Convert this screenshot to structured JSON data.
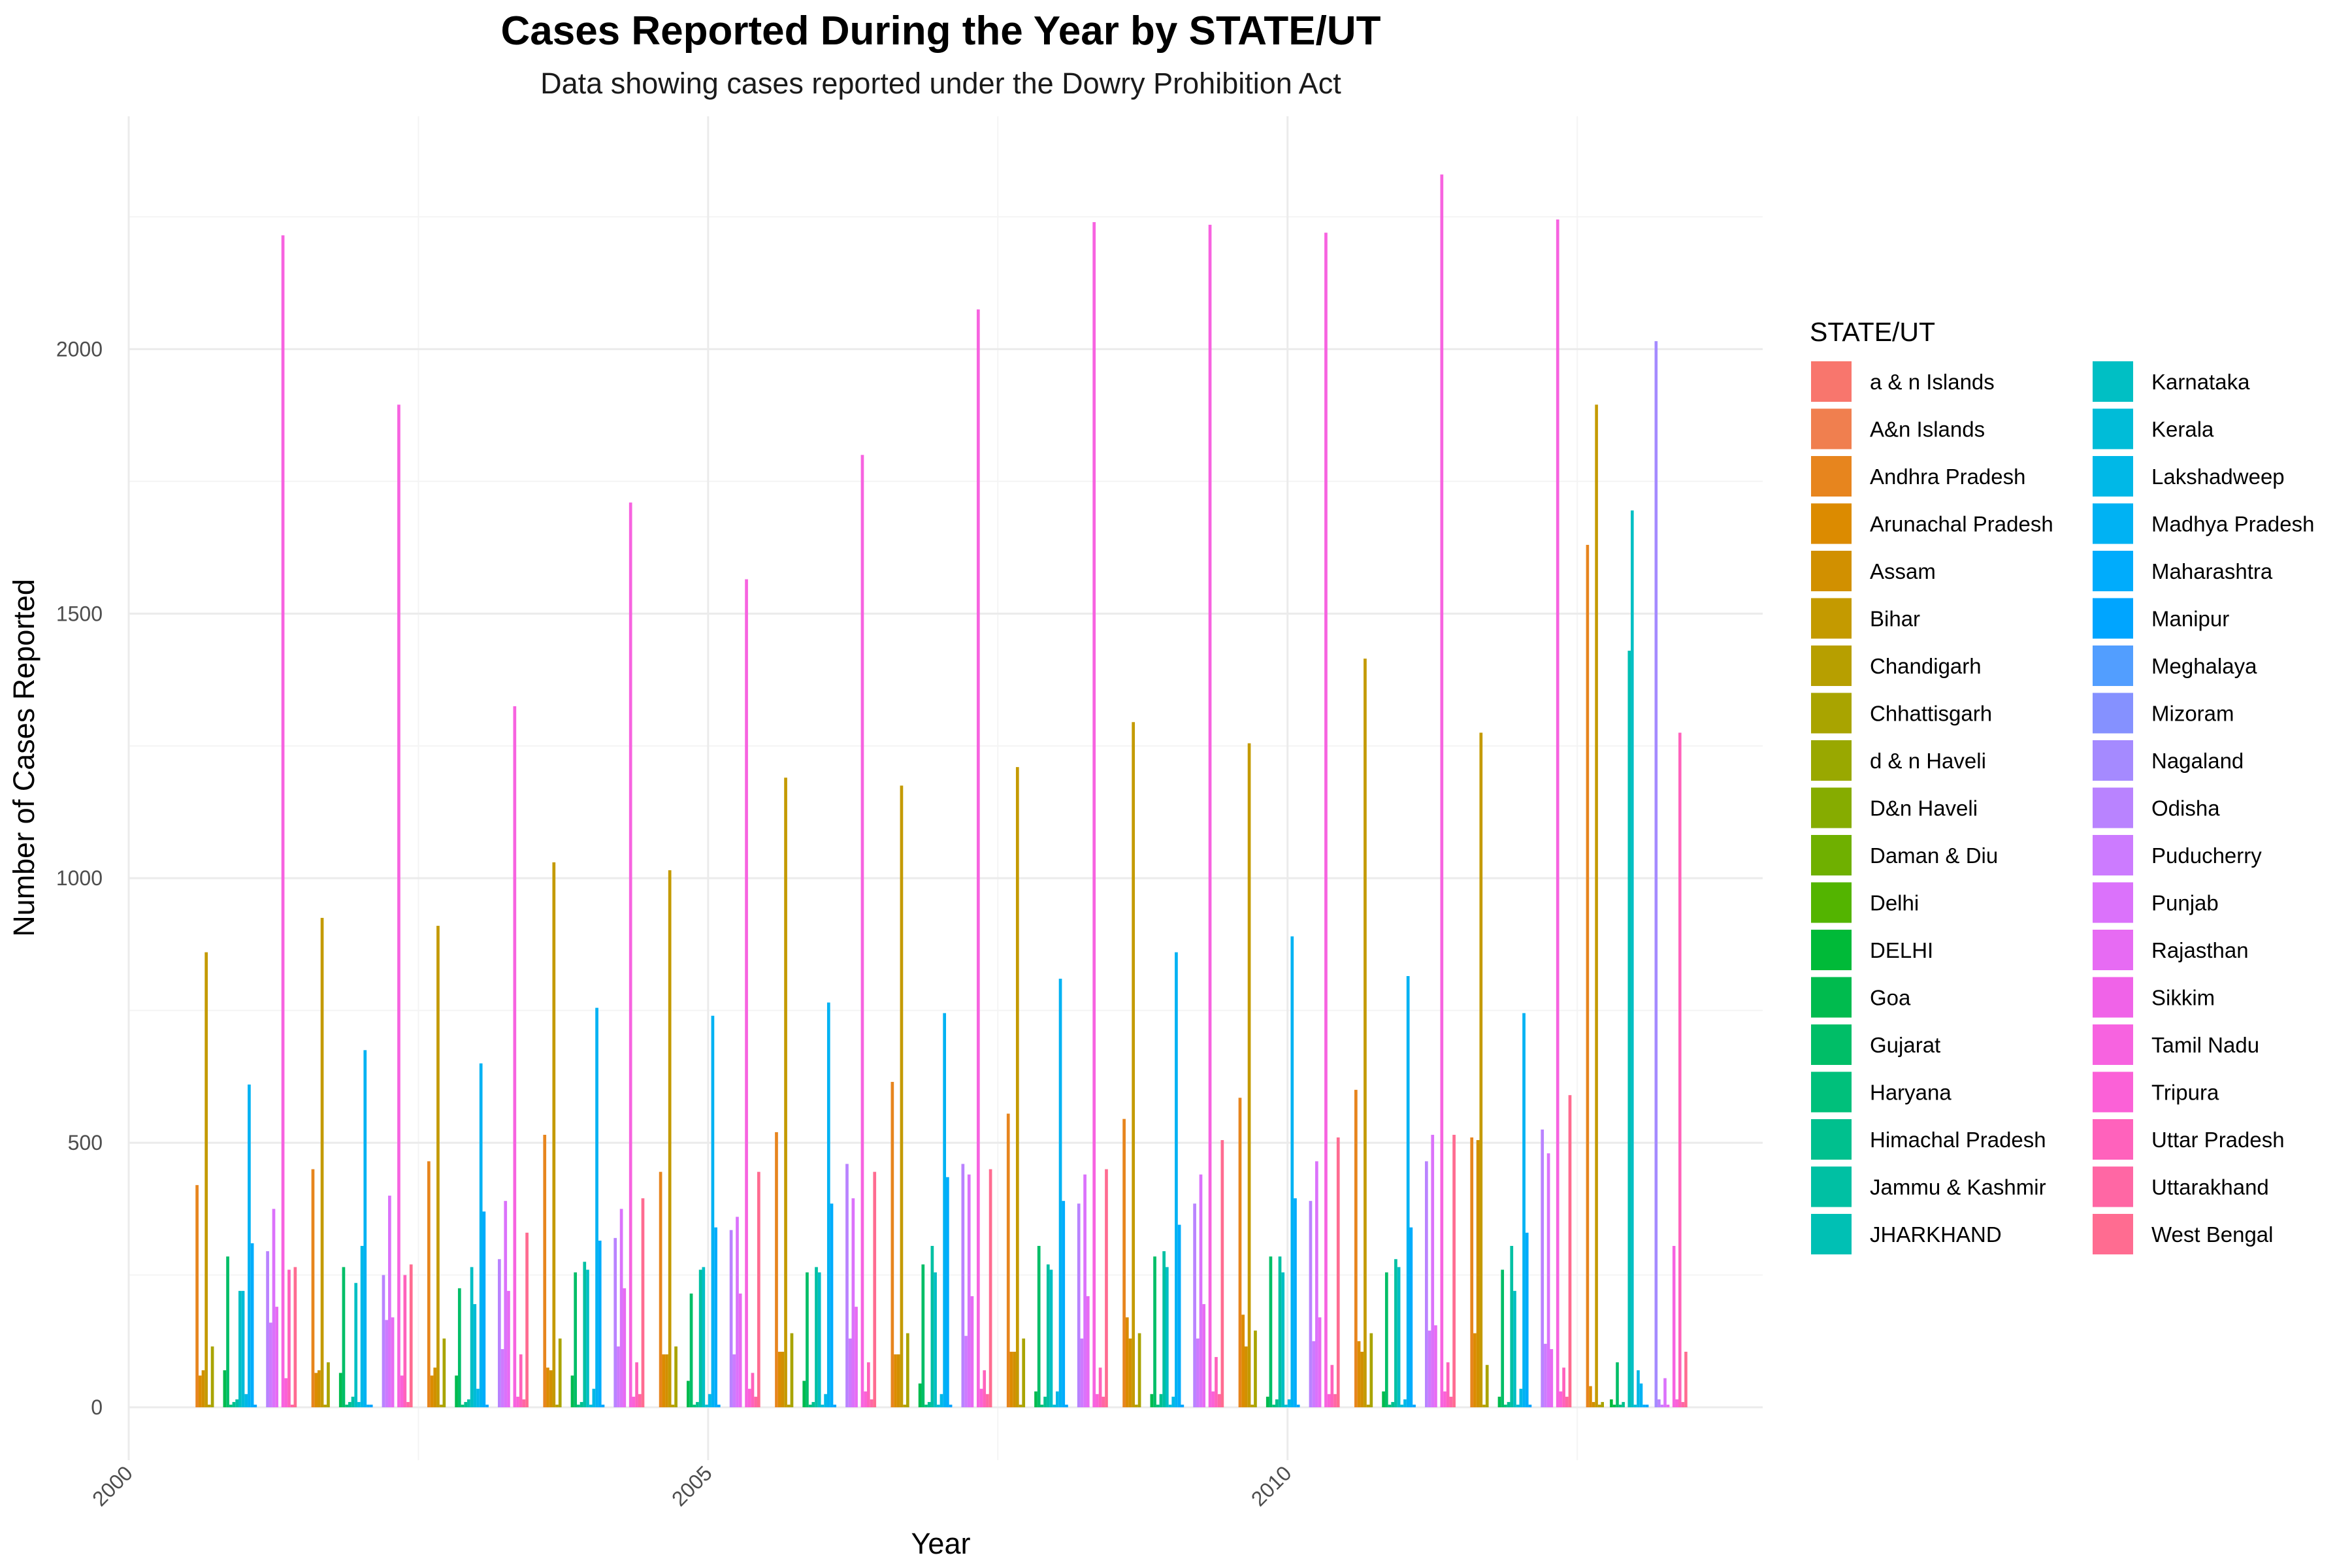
{
  "chart_data": {
    "type": "bar",
    "title": "Cases Reported During the Year by STATE/UT",
    "subtitle": "Data showing cases reported under the Dowry Prohibition Act",
    "xlabel": "Year",
    "ylabel": "Number of Cases Reported",
    "legend_title": "STATE/UT",
    "legend_position": "right",
    "grid": true,
    "x_ticks": [
      2000,
      2005,
      2010
    ],
    "y_ticks": [
      0,
      500,
      1000,
      1500,
      2000
    ],
    "xlim": [
      2000,
      2014.1
    ],
    "ylim": [
      -100,
      2440
    ],
    "x": [
      2001,
      2002,
      2003,
      2004,
      2005,
      2006,
      2007,
      2008,
      2009,
      2010,
      2011,
      2012,
      2013
    ],
    "series": [
      {
        "name": "a & n Islands",
        "color": "#F8766D",
        "values": [
          0,
          0,
          0,
          0,
          0,
          0,
          0,
          0,
          0,
          0,
          0,
          0,
          null
        ]
      },
      {
        "name": "A&n Islands",
        "color": "#F07F4F",
        "values": [
          null,
          null,
          null,
          null,
          null,
          null,
          null,
          null,
          null,
          null,
          null,
          null,
          0
        ]
      },
      {
        "name": "Andhra Pradesh",
        "color": "#E7851E",
        "values": [
          420,
          450,
          465,
          515,
          445,
          520,
          615,
          555,
          545,
          585,
          600,
          510,
          1630
        ]
      },
      {
        "name": "Arunachal Pradesh",
        "color": "#DC8B00",
        "values": [
          60,
          65,
          60,
          75,
          100,
          105,
          100,
          105,
          170,
          175,
          125,
          140,
          40
        ]
      },
      {
        "name": "Assam",
        "color": "#D19000",
        "values": [
          70,
          70,
          75,
          70,
          100,
          105,
          100,
          105,
          130,
          115,
          105,
          505,
          10
        ]
      },
      {
        "name": "Bihar",
        "color": "#C49A00",
        "values": [
          860,
          925,
          910,
          1030,
          1015,
          1190,
          1175,
          1210,
          1295,
          1255,
          1415,
          1275,
          1895
        ]
      },
      {
        "name": "Chandigarh",
        "color": "#B79F00",
        "values": [
          5,
          5,
          5,
          5,
          5,
          5,
          5,
          5,
          5,
          5,
          5,
          5,
          5
        ]
      },
      {
        "name": "Chhattisgarh",
        "color": "#A9A400",
        "values": [
          115,
          85,
          130,
          130,
          115,
          140,
          140,
          130,
          140,
          145,
          140,
          80,
          10
        ]
      },
      {
        "name": "d & n Haveli",
        "color": "#99A800",
        "values": [
          0,
          0,
          0,
          0,
          0,
          0,
          0,
          0,
          0,
          0,
          0,
          0,
          null
        ]
      },
      {
        "name": "D&n Haveli",
        "color": "#86AC00",
        "values": [
          null,
          null,
          null,
          null,
          null,
          null,
          null,
          null,
          null,
          null,
          null,
          null,
          0
        ]
      },
      {
        "name": "Daman & Diu",
        "color": "#6FB000",
        "values": [
          0,
          0,
          0,
          0,
          0,
          0,
          0,
          0,
          0,
          0,
          0,
          0,
          0
        ]
      },
      {
        "name": "Delhi",
        "color": "#53B400",
        "values": [
          0,
          0,
          0,
          0,
          0,
          0,
          0,
          0,
          0,
          0,
          0,
          0,
          null
        ]
      },
      {
        "name": "DELHI",
        "color": "#00BA38",
        "values": [
          null,
          null,
          null,
          null,
          null,
          null,
          null,
          null,
          null,
          null,
          null,
          null,
          15
        ]
      },
      {
        "name": "Goa",
        "color": "#00BB4E",
        "values": [
          70,
          65,
          60,
          60,
          50,
          50,
          45,
          30,
          25,
          20,
          30,
          20,
          5
        ]
      },
      {
        "name": "Gujarat",
        "color": "#00BE67",
        "values": [
          285,
          265,
          225,
          255,
          215,
          255,
          270,
          305,
          285,
          285,
          255,
          260,
          85
        ]
      },
      {
        "name": "Haryana",
        "color": "#00C07B",
        "values": [
          5,
          5,
          5,
          5,
          5,
          5,
          5,
          5,
          5,
          5,
          5,
          5,
          5
        ]
      },
      {
        "name": "Himachal Pradesh",
        "color": "#00C08E",
        "values": [
          10,
          10,
          10,
          10,
          10,
          10,
          10,
          20,
          25,
          15,
          10,
          10,
          10
        ]
      },
      {
        "name": "Jammu & Kashmir",
        "color": "#00C0A3",
        "values": [
          15,
          20,
          15,
          275,
          260,
          265,
          305,
          270,
          295,
          285,
          280,
          305,
          0
        ]
      },
      {
        "name": "JHARKHAND",
        "color": "#00C0B4",
        "values": [
          null,
          null,
          null,
          null,
          null,
          null,
          null,
          null,
          null,
          null,
          null,
          null,
          1430
        ]
      },
      {
        "name": "Karnataka",
        "color": "#00BFC4",
        "values": [
          220,
          235,
          265,
          260,
          265,
          255,
          255,
          260,
          265,
          255,
          265,
          220,
          1695
        ]
      },
      {
        "name": "Kerala",
        "color": "#00BCD8",
        "values": [
          220,
          10,
          195,
          5,
          5,
          5,
          5,
          5,
          5,
          5,
          5,
          5,
          5
        ]
      },
      {
        "name": "Lakshadweep",
        "color": "#00B8E7",
        "values": [
          25,
          305,
          35,
          35,
          25,
          25,
          25,
          30,
          20,
          15,
          15,
          35,
          70
        ]
      },
      {
        "name": "Madhya Pradesh",
        "color": "#00B2F3",
        "values": [
          610,
          675,
          650,
          755,
          740,
          765,
          745,
          810,
          860,
          890,
          815,
          745,
          45
        ]
      },
      {
        "name": "Maharashtra",
        "color": "#00ACFC",
        "values": [
          310,
          5,
          370,
          315,
          340,
          385,
          435,
          390,
          345,
          395,
          340,
          330,
          5
        ]
      },
      {
        "name": "Manipur",
        "color": "#00A5FF",
        "values": [
          5,
          5,
          5,
          5,
          5,
          5,
          5,
          5,
          5,
          5,
          5,
          5,
          5
        ]
      },
      {
        "name": "Meghalaya",
        "color": "#529EFF",
        "values": [
          0,
          0,
          0,
          0,
          0,
          0,
          0,
          0,
          0,
          0,
          0,
          0,
          0
        ]
      },
      {
        "name": "Mizoram",
        "color": "#8591FF",
        "values": [
          0,
          0,
          0,
          0,
          0,
          0,
          0,
          0,
          0,
          0,
          0,
          0,
          0
        ]
      },
      {
        "name": "Nagaland",
        "color": "#A58AFF",
        "values": [
          0,
          0,
          0,
          0,
          0,
          0,
          0,
          0,
          0,
          0,
          0,
          0,
          2015
        ]
      },
      {
        "name": "Odisha",
        "color": "#B983FF",
        "values": [
          295,
          250,
          280,
          320,
          335,
          460,
          460,
          385,
          385,
          390,
          465,
          525,
          15
        ]
      },
      {
        "name": "Puducherry",
        "color": "#CC7BFF",
        "values": [
          160,
          165,
          110,
          115,
          100,
          130,
          135,
          130,
          130,
          125,
          145,
          120,
          5
        ]
      },
      {
        "name": "Punjab",
        "color": "#DB72FB",
        "values": [
          375,
          400,
          390,
          375,
          360,
          395,
          440,
          440,
          440,
          465,
          515,
          480,
          55
        ]
      },
      {
        "name": "Rajasthan",
        "color": "#E76BF3",
        "values": [
          190,
          170,
          220,
          225,
          215,
          190,
          210,
          210,
          195,
          170,
          155,
          110,
          5
        ]
      },
      {
        "name": "Sikkim",
        "color": "#F063E8",
        "values": [
          0,
          0,
          0,
          0,
          0,
          0,
          0,
          0,
          0,
          0,
          0,
          0,
          0
        ]
      },
      {
        "name": "Tamil Nadu",
        "color": "#F763E0",
        "values": [
          2215,
          1895,
          1325,
          1710,
          1565,
          1800,
          2075,
          2240,
          2235,
          2220,
          2330,
          2245,
          305
        ]
      },
      {
        "name": "Tripura",
        "color": "#FB61D7",
        "values": [
          55,
          60,
          20,
          20,
          35,
          30,
          35,
          25,
          30,
          25,
          30,
          30,
          15
        ]
      },
      {
        "name": "Uttar Pradesh",
        "color": "#FF62BC",
        "values": [
          260,
          250,
          100,
          85,
          65,
          85,
          70,
          75,
          95,
          80,
          85,
          75,
          1275
        ]
      },
      {
        "name": "Uttarakhand",
        "color": "#FF67A4",
        "values": [
          5,
          10,
          15,
          25,
          20,
          15,
          25,
          20,
          25,
          25,
          20,
          20,
          10
        ]
      },
      {
        "name": "West Bengal",
        "color": "#FF6C91",
        "values": [
          265,
          270,
          330,
          395,
          445,
          445,
          450,
          450,
          505,
          510,
          515,
          590,
          105
        ]
      }
    ]
  }
}
